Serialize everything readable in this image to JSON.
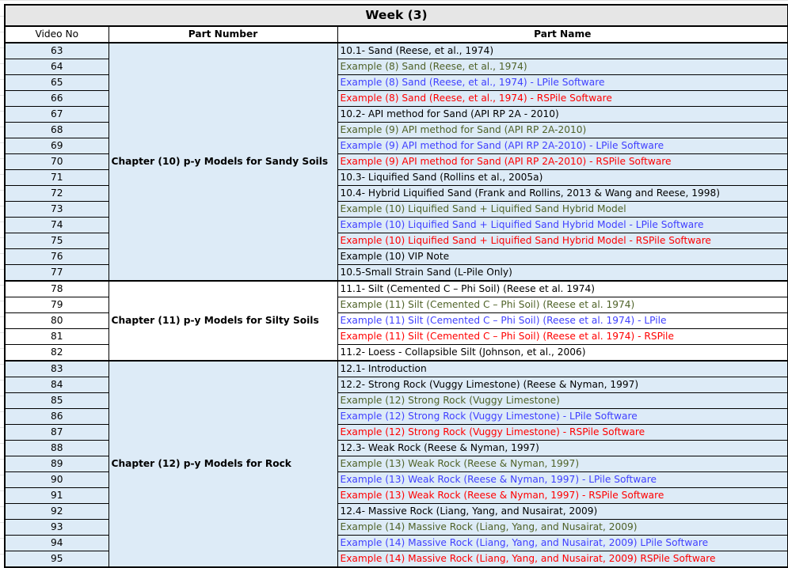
{
  "title": "Week (3)",
  "headers": [
    "Video No",
    "Part Number",
    "Part Name"
  ],
  "colors": {
    "k": "#000000",
    "g": "#4f6228",
    "b": "#4040ff",
    "r": "#ff0000",
    "fill_blue": "#ddebf7"
  },
  "groups": [
    {
      "chapter": "Chapter (10) p-y Models for Sandy Soils",
      "fill": "blue",
      "rows": [
        {
          "no": "63",
          "name": "10.1- Sand (Reese, et al., 1974)",
          "color": "k"
        },
        {
          "no": "64",
          "name": "Example (8) Sand (Reese, et al., 1974)",
          "color": "g"
        },
        {
          "no": "65",
          "name": "Example (8) Sand (Reese, et al., 1974) - LPile Software",
          "color": "b"
        },
        {
          "no": "66",
          "name": "Example (8) Sand (Reese, et al., 1974) - RSPile Software",
          "color": "r"
        },
        {
          "no": "67",
          "name": "10.2- API method for Sand (API RP 2A - 2010)",
          "color": "k"
        },
        {
          "no": "68",
          "name": "Example (9) API method for Sand (API RP 2A-2010)",
          "color": "g"
        },
        {
          "no": "69",
          "name": "Example (9) API method for Sand (API RP 2A-2010) - LPile Software",
          "color": "b"
        },
        {
          "no": "70",
          "name": "Example (9) API method for Sand (API RP 2A-2010) - RSPile Software",
          "color": "r"
        },
        {
          "no": "71",
          "name": "10.3- Liquified Sand (Rollins et al., 2005a)",
          "color": "k"
        },
        {
          "no": "72",
          "name": "10.4- Hybrid Liquified Sand  (Frank and Rollins, 2013 & Wang and Reese, 1998)",
          "color": "k"
        },
        {
          "no": "73",
          "name": "Example (10) Liquified Sand + Liquified Sand Hybrid Model",
          "color": "g"
        },
        {
          "no": "74",
          "name": "Example (10) Liquified Sand + Liquified Sand Hybrid Model - LPile Software",
          "color": "b"
        },
        {
          "no": "75",
          "name": "Example (10) Liquified Sand + Liquified Sand Hybrid Model - RSPile Software",
          "color": "r"
        },
        {
          "no": "76",
          "name": "Example (10) VIP Note",
          "color": "k"
        },
        {
          "no": "77",
          "name": "10.5-Small Strain Sand (L-Pile Only)",
          "color": "k"
        }
      ]
    },
    {
      "chapter": "Chapter (11) p-y Models for Silty Soils",
      "fill": "white",
      "rows": [
        {
          "no": "78",
          "name": "11.1- Silt (Cemented C – Phi Soil) (Reese et al. 1974)",
          "color": "k"
        },
        {
          "no": "79",
          "name": "Example (11) Silt (Cemented C – Phi Soil) (Reese et al. 1974)",
          "color": "g"
        },
        {
          "no": "80",
          "name": "Example (11) Silt (Cemented C – Phi Soil) (Reese et al. 1974) - LPile",
          "color": "b"
        },
        {
          "no": "81",
          "name": "Example (11) Silt (Cemented C – Phi Soil) (Reese et al. 1974) - RSPile",
          "color": "r"
        },
        {
          "no": "82",
          "name": "11.2- Loess - Collapsible Silt (Johnson, et al., 2006)",
          "color": "k"
        }
      ]
    },
    {
      "chapter": "Chapter (12) p-y Models for Rock",
      "fill": "blue",
      "rows": [
        {
          "no": "83",
          "name": "12.1- Introduction",
          "color": "k"
        },
        {
          "no": "84",
          "name": "12.2- Strong Rock (Vuggy Limestone)  (Reese & Nyman, 1997)",
          "color": "k"
        },
        {
          "no": "85",
          "name": "Example (12) Strong Rock (Vuggy Limestone)",
          "color": "g"
        },
        {
          "no": "86",
          "name": "Example (12) Strong Rock (Vuggy Limestone) - LPile Software",
          "color": "b"
        },
        {
          "no": "87",
          "name": "Example (12) Strong Rock (Vuggy Limestone) - RSPile Software",
          "color": "r"
        },
        {
          "no": "88",
          "name": "12.3- Weak Rock (Reese & Nyman, 1997)",
          "color": "k"
        },
        {
          "no": "89",
          "name": "Example (13) Weak Rock (Reese & Nyman, 1997)",
          "color": "g"
        },
        {
          "no": "90",
          "name": "Example (13) Weak Rock (Reese & Nyman, 1997) - LPile Software",
          "color": "b"
        },
        {
          "no": "91",
          "name": "Example (13) Weak Rock (Reese & Nyman, 1997) - RSPile Software",
          "color": "r"
        },
        {
          "no": "92",
          "name": "12.4- Massive Rock  (Liang, Yang, and Nusairat, 2009)",
          "color": "k"
        },
        {
          "no": "93",
          "name": "Example (14) Massive Rock (Liang, Yang, and Nusairat, 2009)",
          "color": "g"
        },
        {
          "no": "94",
          "name": "Example (14) Massive Rock (Liang, Yang, and Nusairat, 2009) LPile Software",
          "color": "b"
        },
        {
          "no": "95",
          "name": "Example (14) Massive Rock (Liang, Yang, and Nusairat, 2009) RSPile Software",
          "color": "r"
        }
      ]
    }
  ]
}
